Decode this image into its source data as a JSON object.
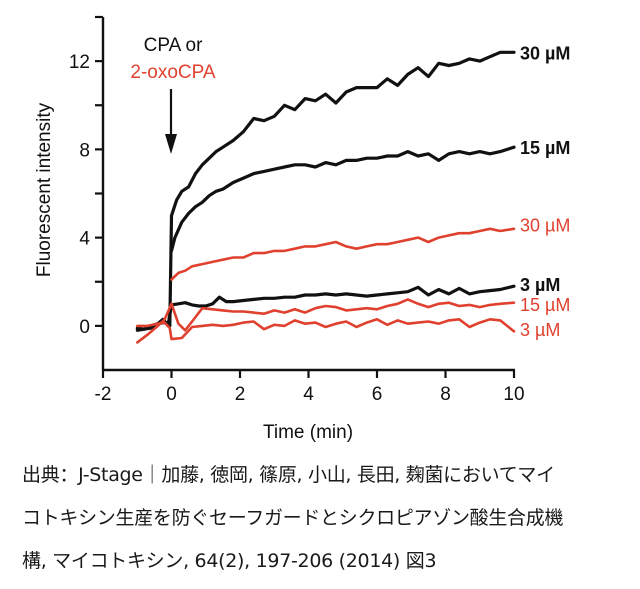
{
  "chart_data": {
    "type": "line",
    "title": "",
    "xlabel": "Time (min)",
    "ylabel": "Fluorescent intensity",
    "xlim": [
      -2,
      10
    ],
    "ylim": [
      -2,
      14
    ],
    "xticks": [
      -2,
      0,
      2,
      4,
      6,
      8,
      10
    ],
    "yticks_labeled": [
      0,
      4,
      8,
      12
    ],
    "yticks_minor": [
      2,
      6,
      10
    ],
    "grid": false,
    "annotation": {
      "line1": "CPA or",
      "line2": "2-oxoCPA",
      "arrow_at_x": 0,
      "line1_color": "#111111",
      "line2_color": "#e0412f"
    },
    "colors": {
      "CPA": "#111111",
      "2-oxoCPA": "#e0412f"
    },
    "series": [
      {
        "name": "CPA 30 µM",
        "label": "30 µM",
        "compound": "CPA",
        "x": [
          -1.0,
          -0.8,
          -0.6,
          -0.4,
          -0.2,
          -0.05,
          0.0,
          0.15,
          0.3,
          0.5,
          0.7,
          0.9,
          1.1,
          1.3,
          1.5,
          1.8,
          2.1,
          2.4,
          2.7,
          3.0,
          3.3,
          3.6,
          3.9,
          4.2,
          4.5,
          4.8,
          5.1,
          5.4,
          5.7,
          6.0,
          6.3,
          6.6,
          6.9,
          7.2,
          7.5,
          7.8,
          8.1,
          8.4,
          8.7,
          9.0,
          9.3,
          9.6,
          10.0
        ],
        "y": [
          -0.1,
          -0.15,
          0.0,
          0.1,
          0.15,
          0.0,
          5.0,
          5.7,
          6.1,
          6.3,
          6.9,
          7.3,
          7.6,
          7.9,
          8.1,
          8.4,
          8.8,
          9.4,
          9.3,
          9.5,
          10.0,
          9.8,
          10.3,
          10.2,
          10.5,
          10.1,
          10.6,
          10.8,
          10.8,
          10.8,
          11.2,
          10.9,
          11.4,
          11.7,
          11.3,
          11.9,
          11.8,
          11.9,
          12.1,
          12.0,
          12.2,
          12.4,
          12.4
        ]
      },
      {
        "name": "CPA 15 µM",
        "label": "15 µM",
        "compound": "CPA",
        "x": [
          0.0,
          0.1,
          0.3,
          0.5,
          0.7,
          0.9,
          1.1,
          1.3,
          1.5,
          1.8,
          2.1,
          2.4,
          2.7,
          3.0,
          3.3,
          3.6,
          3.9,
          4.2,
          4.5,
          4.8,
          5.1,
          5.4,
          5.7,
          6.0,
          6.3,
          6.6,
          6.9,
          7.2,
          7.5,
          7.8,
          8.1,
          8.4,
          8.7,
          9.0,
          9.3,
          9.6,
          10.0
        ],
        "y": [
          3.4,
          4.0,
          4.7,
          5.1,
          5.4,
          5.6,
          5.9,
          6.1,
          6.2,
          6.5,
          6.7,
          6.9,
          7.0,
          7.1,
          7.2,
          7.3,
          7.3,
          7.2,
          7.4,
          7.3,
          7.5,
          7.5,
          7.6,
          7.6,
          7.7,
          7.7,
          7.9,
          7.7,
          7.8,
          7.5,
          7.8,
          7.9,
          7.8,
          7.9,
          7.8,
          7.9,
          8.1
        ]
      },
      {
        "name": "2-oxoCPA 30 µM",
        "label": "30 µM",
        "compound": "2-oxoCPA",
        "x": [
          0.0,
          0.2,
          0.4,
          0.6,
          0.9,
          1.2,
          1.5,
          1.8,
          2.1,
          2.4,
          2.7,
          3.0,
          3.3,
          3.6,
          3.9,
          4.2,
          4.5,
          4.8,
          5.1,
          5.4,
          5.7,
          6.0,
          6.3,
          6.6,
          6.9,
          7.2,
          7.5,
          7.8,
          8.1,
          8.4,
          8.7,
          9.0,
          9.3,
          9.6,
          10.0
        ],
        "y": [
          2.1,
          2.4,
          2.5,
          2.7,
          2.8,
          2.9,
          3.0,
          3.1,
          3.1,
          3.3,
          3.3,
          3.4,
          3.4,
          3.5,
          3.6,
          3.6,
          3.7,
          3.8,
          3.6,
          3.5,
          3.6,
          3.7,
          3.7,
          3.8,
          3.9,
          4.0,
          3.8,
          4.0,
          4.1,
          4.2,
          4.2,
          4.3,
          4.4,
          4.3,
          4.4
        ]
      },
      {
        "name": "CPA 3 µM",
        "label": "3 µM",
        "compound": "CPA",
        "x": [
          -1.0,
          -0.8,
          -0.6,
          -0.4,
          -0.25,
          -0.1,
          0.0,
          0.2,
          0.4,
          0.6,
          0.8,
          1.0,
          1.2,
          1.4,
          1.6,
          1.8,
          2.1,
          2.4,
          2.7,
          3.0,
          3.3,
          3.6,
          3.9,
          4.2,
          4.5,
          4.8,
          5.1,
          5.4,
          5.7,
          6.0,
          6.3,
          6.6,
          6.9,
          7.2,
          7.5,
          7.8,
          8.1,
          8.4,
          8.7,
          9.0,
          9.3,
          9.6,
          10.0
        ],
        "y": [
          -0.2,
          -0.15,
          -0.1,
          0.1,
          0.3,
          0.05,
          0.95,
          1.0,
          1.05,
          0.95,
          0.9,
          0.9,
          1.0,
          1.3,
          1.1,
          1.1,
          1.15,
          1.2,
          1.25,
          1.25,
          1.3,
          1.3,
          1.4,
          1.4,
          1.45,
          1.4,
          1.45,
          1.4,
          1.35,
          1.4,
          1.45,
          1.5,
          1.55,
          1.75,
          1.4,
          1.65,
          1.45,
          1.7,
          1.45,
          1.55,
          1.6,
          1.65,
          1.8
        ]
      },
      {
        "name": "2-oxoCPA 15 µM",
        "label": "15 µM",
        "compound": "2-oxoCPA",
        "x": [
          -1.0,
          -0.7,
          -0.4,
          -0.2,
          0.0,
          0.2,
          0.4,
          0.6,
          0.9,
          1.2,
          1.5,
          1.8,
          2.1,
          2.4,
          2.7,
          3.0,
          3.3,
          3.6,
          3.9,
          4.2,
          4.5,
          4.8,
          5.1,
          5.4,
          5.7,
          6.0,
          6.3,
          6.6,
          6.9,
          7.2,
          7.5,
          7.8,
          8.1,
          8.4,
          8.7,
          9.0,
          9.3,
          9.6,
          10.0
        ],
        "y": [
          -0.75,
          -0.4,
          0.0,
          0.3,
          1.0,
          0.1,
          -0.2,
          0.2,
          0.8,
          0.75,
          0.7,
          0.65,
          0.65,
          0.6,
          0.55,
          0.7,
          0.6,
          0.75,
          0.6,
          0.8,
          0.9,
          0.85,
          0.7,
          0.75,
          0.8,
          0.75,
          0.9,
          1.0,
          1.2,
          1.0,
          0.85,
          1.0,
          1.05,
          0.9,
          0.95,
          0.85,
          0.95,
          1.0,
          1.05
        ]
      },
      {
        "name": "2-oxoCPA 3 µM",
        "label": "3 µM",
        "compound": "2-oxoCPA",
        "x": [
          -1.0,
          -0.7,
          -0.4,
          -0.2,
          -0.05,
          0.0,
          0.3,
          0.6,
          0.9,
          1.2,
          1.5,
          1.8,
          2.1,
          2.4,
          2.7,
          3.0,
          3.3,
          3.6,
          3.9,
          4.2,
          4.5,
          4.8,
          5.1,
          5.4,
          5.7,
          6.0,
          6.3,
          6.6,
          6.9,
          7.2,
          7.5,
          7.8,
          8.1,
          8.4,
          8.7,
          9.0,
          9.3,
          9.6,
          10.0
        ],
        "y": [
          0.0,
          0.0,
          0.1,
          0.15,
          -0.1,
          -0.6,
          -0.55,
          -0.05,
          0.0,
          0.05,
          0.0,
          0.05,
          0.15,
          0.2,
          -0.15,
          0.05,
          0.0,
          0.25,
          0.1,
          0.15,
          -0.05,
          0.1,
          0.2,
          -0.05,
          0.15,
          0.3,
          0.05,
          0.25,
          0.1,
          0.15,
          0.2,
          0.1,
          0.25,
          0.3,
          -0.05,
          0.15,
          0.3,
          0.25,
          -0.25
        ]
      }
    ]
  },
  "caption": {
    "line1": "出典：J-Stage｜加藤, 徳岡, 篠原, 小山, 長田, 麹菌においてマイ",
    "line2": "コトキシン生産を防ぐセーフガードとシクロピアゾン酸生合成機",
    "line3": "構, マイコトキシン, 64(2), 197-206 (2014) 図3"
  }
}
